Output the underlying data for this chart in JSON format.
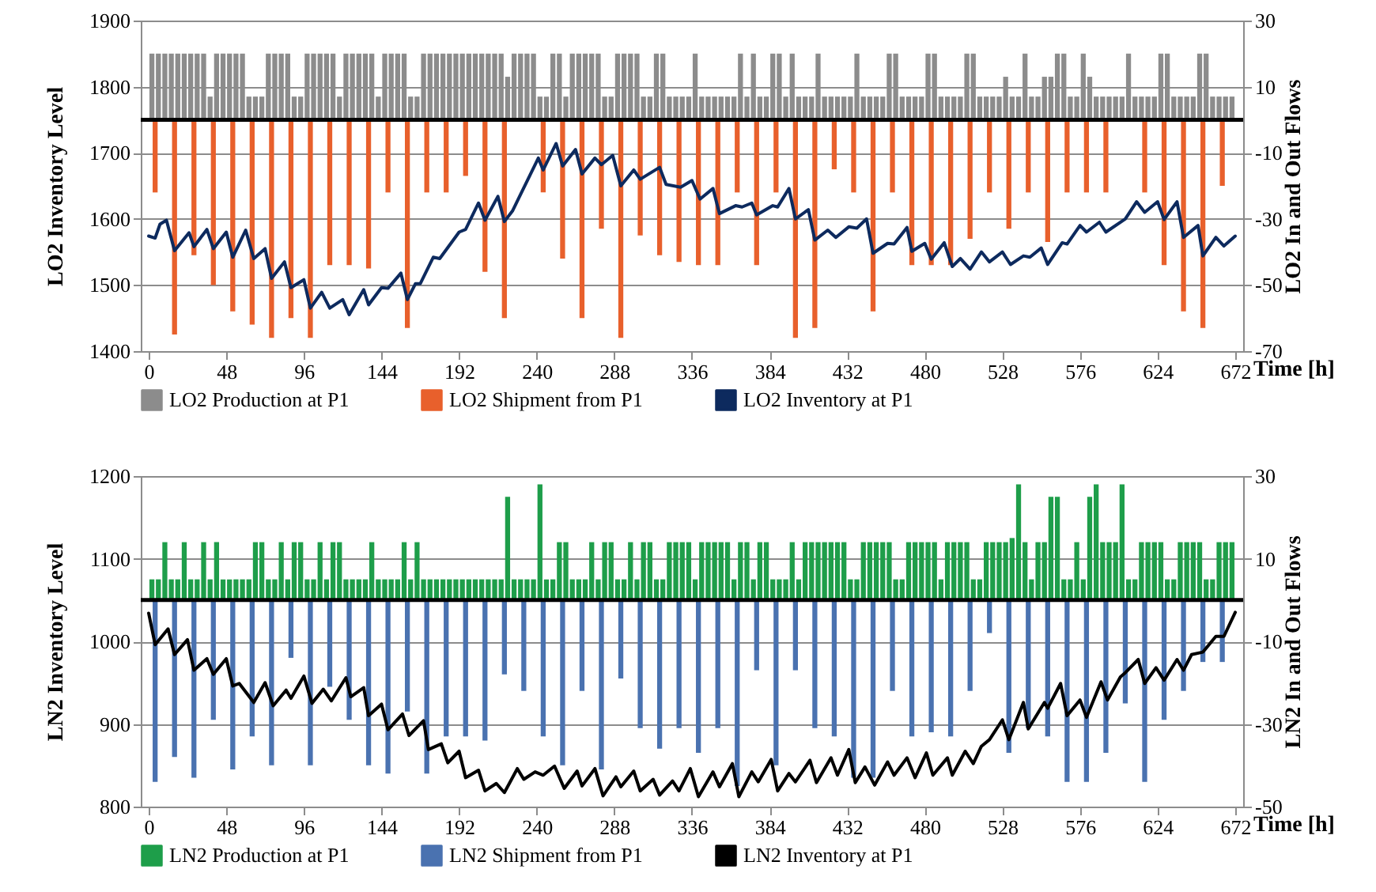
{
  "chart_data": [
    {
      "type": "bar",
      "xlabel": "Time [h]",
      "ylabel": "LO2 Inventory Level",
      "y2label": "LO2 In and Out Flows",
      "xlim": [
        0,
        672
      ],
      "xticks": [
        0,
        48,
        96,
        144,
        192,
        240,
        288,
        336,
        384,
        432,
        480,
        528,
        576,
        624,
        672
      ],
      "ylim": [
        1400,
        1900
      ],
      "yticks": [
        1400,
        1500,
        1600,
        1700,
        1800,
        1900
      ],
      "y2lim": [
        -70,
        30
      ],
      "y2ticks": [
        -70,
        -50,
        -30,
        -10,
        10,
        30
      ],
      "grid": "y",
      "legend": "bottom",
      "ref_lines": [
        {
          "axis": "y2",
          "value": 0,
          "color": "#000000"
        }
      ],
      "series": [
        {
          "name": "LO2 Production at P1",
          "type": "bar",
          "axis": "y2",
          "color": "#8c8c8c",
          "x": [
            2,
            6,
            10,
            14,
            18,
            22,
            26,
            30,
            34,
            38,
            42,
            46,
            50,
            54,
            58,
            62,
            66,
            70,
            74,
            78,
            82,
            86,
            90,
            94,
            98,
            102,
            106,
            110,
            114,
            118,
            122,
            126,
            130,
            134,
            138,
            142,
            146,
            150,
            154,
            158,
            162,
            166,
            170,
            174,
            178,
            182,
            186,
            190,
            194,
            198,
            202,
            206,
            210,
            214,
            218,
            222,
            226,
            230,
            234,
            238,
            242,
            246,
            250,
            254,
            258,
            262,
            266,
            270,
            274,
            278,
            282,
            286,
            290,
            294,
            298,
            302,
            306,
            310,
            314,
            318,
            322,
            326,
            330,
            334,
            338,
            342,
            346,
            350,
            354,
            358,
            362,
            366,
            370,
            374,
            378,
            382,
            386,
            390,
            394,
            398,
            402,
            406,
            410,
            414,
            418,
            422,
            426,
            430,
            434,
            438,
            442,
            446,
            450,
            454,
            458,
            462,
            466,
            470,
            474,
            478,
            482,
            486,
            490,
            494,
            498,
            502,
            506,
            510,
            514,
            518,
            522,
            526,
            530,
            534,
            538,
            542,
            546,
            550,
            554,
            558,
            562,
            566,
            570,
            574,
            578,
            582,
            586,
            590,
            594,
            598,
            602,
            606,
            610,
            614,
            618,
            622,
            626,
            630,
            634,
            638,
            642,
            646,
            650,
            654,
            658,
            662,
            666,
            670
          ],
          "values": [
            20,
            20,
            20,
            20,
            20,
            20,
            20,
            20,
            20,
            7,
            20,
            20,
            20,
            20,
            20,
            7,
            7,
            7,
            20,
            20,
            20,
            20,
            7,
            7,
            20,
            20,
            20,
            20,
            20,
            7,
            20,
            20,
            20,
            20,
            20,
            7,
            20,
            20,
            20,
            20,
            7,
            7,
            20,
            20,
            20,
            20,
            20,
            20,
            20,
            20,
            20,
            20,
            20,
            20,
            20,
            13,
            20,
            20,
            20,
            20,
            7,
            7,
            20,
            20,
            7,
            20,
            20,
            20,
            20,
            20,
            7,
            7,
            20,
            20,
            20,
            20,
            7,
            7,
            20,
            20,
            7,
            7,
            7,
            7,
            20,
            7,
            7,
            7,
            7,
            7,
            7,
            20,
            7,
            20,
            7,
            7,
            20,
            20,
            7,
            20,
            7,
            7,
            7,
            20,
            7,
            7,
            7,
            7,
            7,
            20,
            7,
            7,
            7,
            7,
            20,
            20,
            7,
            7,
            7,
            7,
            20,
            20,
            7,
            7,
            7,
            7,
            20,
            20,
            7,
            7,
            7,
            7,
            13,
            7,
            7,
            20,
            7,
            7,
            13,
            13,
            20,
            20,
            7,
            7,
            20,
            13,
            7,
            7,
            7,
            7,
            7,
            20,
            7,
            7,
            7,
            7,
            20,
            20,
            7,
            7,
            7,
            7,
            20,
            20,
            7,
            7,
            7,
            7
          ]
        },
        {
          "name": "LO2 Shipment from P1",
          "type": "bar",
          "axis": "y2",
          "color": "#e8602c",
          "x": [
            4,
            16,
            28,
            40,
            52,
            64,
            76,
            88,
            100,
            112,
            124,
            136,
            148,
            160,
            172,
            184,
            196,
            208,
            220,
            244,
            256,
            268,
            280,
            292,
            304,
            316,
            328,
            340,
            352,
            364,
            376,
            388,
            400,
            412,
            424,
            436,
            448,
            460,
            472,
            484,
            496,
            508,
            520,
            532,
            544,
            556,
            568,
            580,
            592,
            616,
            628,
            640,
            652,
            664
          ],
          "values": [
            -22,
            -65,
            -41,
            -50,
            -58,
            -62,
            -66,
            -60,
            -66,
            -44,
            -44,
            -45,
            -22,
            -63,
            -22,
            -22,
            -17,
            -46,
            -60,
            -22,
            -42,
            -60,
            -33,
            -66,
            -35,
            -41,
            -43,
            -44,
            -44,
            -22,
            -44,
            -22,
            -66,
            -63,
            -15,
            -22,
            -58,
            -22,
            -44,
            -44,
            -44,
            -36,
            -22,
            -33,
            -22,
            -37,
            -22,
            -22,
            -22,
            -22,
            -44,
            -58,
            -63,
            -20
          ]
        },
        {
          "name": "LO2 Inventory at P1",
          "type": "line",
          "color": "#0d2a5e",
          "x": [
            0,
            4,
            7,
            11,
            16,
            25,
            28,
            36,
            40,
            48,
            52,
            60,
            65,
            72,
            76,
            84,
            88,
            96,
            100,
            107,
            112,
            120,
            124,
            133,
            136,
            144,
            148,
            156,
            160,
            165,
            168,
            176,
            180,
            192,
            196,
            204,
            208,
            216,
            220,
            225,
            241,
            244,
            252,
            256,
            264,
            268,
            276,
            280,
            287,
            292,
            300,
            304,
            316,
            320,
            329,
            336,
            341,
            349,
            353,
            363,
            367,
            373,
            376,
            386,
            389,
            396,
            400,
            408,
            412,
            420,
            425,
            433,
            438,
            444,
            448,
            457,
            461,
            469,
            472,
            480,
            484,
            492,
            497,
            502,
            508,
            515,
            520,
            528,
            533,
            541,
            545,
            552,
            556,
            565,
            568,
            576,
            580,
            588,
            592,
            604,
            611,
            616,
            624,
            628,
            636,
            640,
            649,
            652,
            660,
            665,
            672
          ],
          "values": [
            1574,
            1571,
            1592,
            1598,
            1552,
            1579,
            1558,
            1584,
            1555,
            1580,
            1542,
            1583,
            1540,
            1555,
            1510,
            1535,
            1496,
            1508,
            1465,
            1489,
            1465,
            1478,
            1455,
            1493,
            1470,
            1496,
            1495,
            1518,
            1478,
            1502,
            1502,
            1542,
            1540,
            1580,
            1584,
            1624,
            1598,
            1634,
            1596,
            1612,
            1692,
            1674,
            1714,
            1680,
            1705,
            1668,
            1692,
            1682,
            1696,
            1650,
            1674,
            1660,
            1678,
            1652,
            1648,
            1658,
            1630,
            1646,
            1608,
            1620,
            1618,
            1624,
            1606,
            1620,
            1618,
            1646,
            1600,
            1614,
            1568,
            1583,
            1572,
            1588,
            1586,
            1600,
            1548,
            1563,
            1562,
            1587,
            1551,
            1563,
            1539,
            1564,
            1528,
            1540,
            1524,
            1550,
            1535,
            1550,
            1531,
            1544,
            1542,
            1556,
            1531,
            1564,
            1562,
            1590,
            1580,
            1595,
            1580,
            1600,
            1626,
            1610,
            1626,
            1599,
            1626,
            1572,
            1590,
            1544,
            1572,
            1559,
            1574
          ]
        }
      ]
    },
    {
      "type": "bar",
      "xlabel": "Time [h]",
      "ylabel": "LN2 Inventory Level",
      "y2label": "LN2 In and Out Flows",
      "xlim": [
        0,
        672
      ],
      "xticks": [
        0,
        48,
        96,
        144,
        192,
        240,
        288,
        336,
        384,
        432,
        480,
        528,
        576,
        624,
        672
      ],
      "ylim": [
        800,
        1200
      ],
      "yticks": [
        800,
        900,
        1000,
        1100,
        1200
      ],
      "y2lim": [
        -50,
        30
      ],
      "y2ticks": [
        -50,
        -30,
        -10,
        10,
        30
      ],
      "grid": "y",
      "legend": "bottom",
      "ref_lines": [
        {
          "axis": "y2",
          "value": 0,
          "color": "#000000"
        }
      ],
      "series": [
        {
          "name": "LN2 Production at P1",
          "type": "bar",
          "axis": "y2",
          "color": "#1e9e4a",
          "x": [
            2,
            6,
            10,
            14,
            18,
            22,
            26,
            30,
            34,
            38,
            42,
            46,
            50,
            54,
            58,
            62,
            66,
            70,
            74,
            78,
            82,
            86,
            90,
            94,
            98,
            102,
            106,
            110,
            114,
            118,
            122,
            126,
            130,
            134,
            138,
            142,
            146,
            150,
            154,
            158,
            162,
            166,
            170,
            174,
            178,
            182,
            186,
            190,
            194,
            198,
            202,
            206,
            210,
            214,
            218,
            222,
            226,
            230,
            234,
            238,
            242,
            246,
            250,
            254,
            258,
            262,
            266,
            270,
            274,
            278,
            282,
            286,
            290,
            294,
            298,
            302,
            306,
            310,
            314,
            318,
            322,
            326,
            330,
            334,
            338,
            342,
            346,
            350,
            354,
            358,
            362,
            366,
            370,
            374,
            378,
            382,
            386,
            390,
            394,
            398,
            402,
            406,
            410,
            414,
            418,
            422,
            426,
            430,
            434,
            438,
            442,
            446,
            450,
            454,
            458,
            462,
            466,
            470,
            474,
            478,
            482,
            486,
            490,
            494,
            498,
            502,
            506,
            510,
            514,
            518,
            522,
            526,
            530,
            534,
            538,
            542,
            546,
            550,
            554,
            558,
            562,
            566,
            570,
            574,
            578,
            582,
            586,
            590,
            594,
            598,
            602,
            606,
            610,
            614,
            618,
            622,
            626,
            630,
            634,
            638,
            642,
            646,
            650,
            654,
            658,
            662,
            666,
            670
          ],
          "values": [
            5,
            5,
            14,
            5,
            5,
            14,
            5,
            5,
            14,
            5,
            14,
            5,
            5,
            5,
            5,
            5,
            14,
            14,
            5,
            5,
            14,
            5,
            14,
            14,
            5,
            5,
            14,
            5,
            14,
            14,
            5,
            5,
            5,
            5,
            14,
            5,
            5,
            5,
            5,
            14,
            5,
            14,
            5,
            5,
            5,
            5,
            5,
            5,
            5,
            5,
            5,
            5,
            5,
            5,
            5,
            25,
            5,
            5,
            5,
            5,
            28,
            5,
            5,
            14,
            14,
            5,
            5,
            5,
            14,
            5,
            14,
            14,
            5,
            5,
            14,
            5,
            14,
            14,
            5,
            5,
            14,
            14,
            14,
            14,
            5,
            14,
            14,
            14,
            14,
            14,
            5,
            14,
            14,
            5,
            14,
            14,
            5,
            5,
            5,
            14,
            5,
            14,
            14,
            14,
            14,
            14,
            14,
            14,
            5,
            5,
            14,
            14,
            14,
            14,
            14,
            5,
            5,
            14,
            14,
            14,
            14,
            14,
            5,
            14,
            14,
            14,
            14,
            5,
            5,
            14,
            14,
            14,
            14,
            15,
            28,
            14,
            5,
            14,
            14,
            25,
            25,
            5,
            5,
            14,
            5,
            25,
            28,
            14,
            14,
            14,
            28,
            5,
            5,
            14,
            14,
            14,
            14,
            5,
            5,
            14,
            14,
            14,
            14,
            5,
            5,
            14,
            14,
            14
          ]
        },
        {
          "name": "LN2 Shipment from P1",
          "type": "bar",
          "axis": "y2",
          "color": "#4a72b0",
          "x": [
            4,
            16,
            28,
            40,
            52,
            64,
            76,
            88,
            100,
            112,
            124,
            136,
            148,
            160,
            172,
            184,
            196,
            208,
            220,
            232,
            244,
            256,
            268,
            280,
            292,
            304,
            316,
            328,
            340,
            352,
            364,
            376,
            388,
            400,
            412,
            424,
            436,
            448,
            460,
            472,
            484,
            496,
            508,
            520,
            532,
            544,
            556,
            568,
            580,
            592,
            604,
            616,
            628,
            640,
            652,
            664
          ],
          "values": [
            -44,
            -38,
            -43,
            -29,
            -41,
            -33,
            -40,
            -14,
            -40,
            -21,
            -29,
            -40,
            -42,
            -27,
            -42,
            -33,
            -33,
            -34,
            -18,
            -22,
            -33,
            -40,
            -22,
            -41,
            -19,
            -31,
            -36,
            -31,
            -37,
            -31,
            -45,
            -17,
            -40,
            -17,
            -31,
            -33,
            -43,
            -43,
            -22,
            -33,
            -32,
            -33,
            -22,
            -8,
            -37,
            -31,
            -33,
            -44,
            -44,
            -37,
            -25,
            -44,
            -29,
            -22,
            -15,
            -15
          ]
        },
        {
          "name": "LN2 Inventory at P1",
          "type": "line",
          "color": "#000000",
          "x": [
            0,
            4,
            12,
            16,
            24,
            28,
            36,
            40,
            48,
            52,
            56,
            65,
            72,
            77,
            85,
            88,
            96,
            101,
            108,
            113,
            122,
            125,
            133,
            136,
            144,
            148,
            157,
            161,
            170,
            173,
            181,
            185,
            192,
            196,
            204,
            208,
            215,
            220,
            228,
            232,
            239,
            244,
            251,
            257,
            265,
            268,
            276,
            281,
            289,
            292,
            300,
            304,
            312,
            316,
            324,
            328,
            335,
            340,
            349,
            353,
            361,
            365,
            373,
            377,
            385,
            389,
            396,
            400,
            409,
            413,
            422,
            426,
            433,
            437,
            443,
            449,
            457,
            461,
            469,
            474,
            481,
            485,
            494,
            497,
            505,
            510,
            515,
            520,
            528,
            532,
            541,
            544,
            554,
            556,
            564,
            568,
            576,
            580,
            589,
            593,
            601,
            604,
            612,
            616,
            623,
            628,
            636,
            640,
            645,
            652,
            660,
            665,
            672
          ],
          "values": [
            1034,
            996,
            1015,
            984,
            1002,
            965,
            979,
            960,
            979,
            946,
            949,
            926,
            950,
            922,
            941,
            931,
            958,
            925,
            942,
            928,
            956,
            933,
            944,
            910,
            924,
            893,
            912,
            886,
            904,
            869,
            876,
            853,
            867,
            835,
            844,
            819,
            828,
            817,
            846,
            833,
            842,
            838,
            849,
            822,
            843,
            825,
            846,
            813,
            836,
            824,
            843,
            819,
            833,
            814,
            831,
            819,
            846,
            812,
            842,
            824,
            852,
            812,
            842,
            830,
            857,
            819,
            840,
            830,
            856,
            829,
            859,
            838,
            869,
            829,
            848,
            826,
            854,
            838,
            859,
            835,
            865,
            838,
            859,
            838,
            867,
            852,
            873,
            881,
            905,
            881,
            926,
            894,
            926,
            919,
            949,
            910,
            929,
            908,
            951,
            929,
            957,
            962,
            978,
            949,
            968,
            953,
            978,
            965,
            984,
            987,
            1006,
            1006,
            1035
          ]
        }
      ]
    }
  ]
}
